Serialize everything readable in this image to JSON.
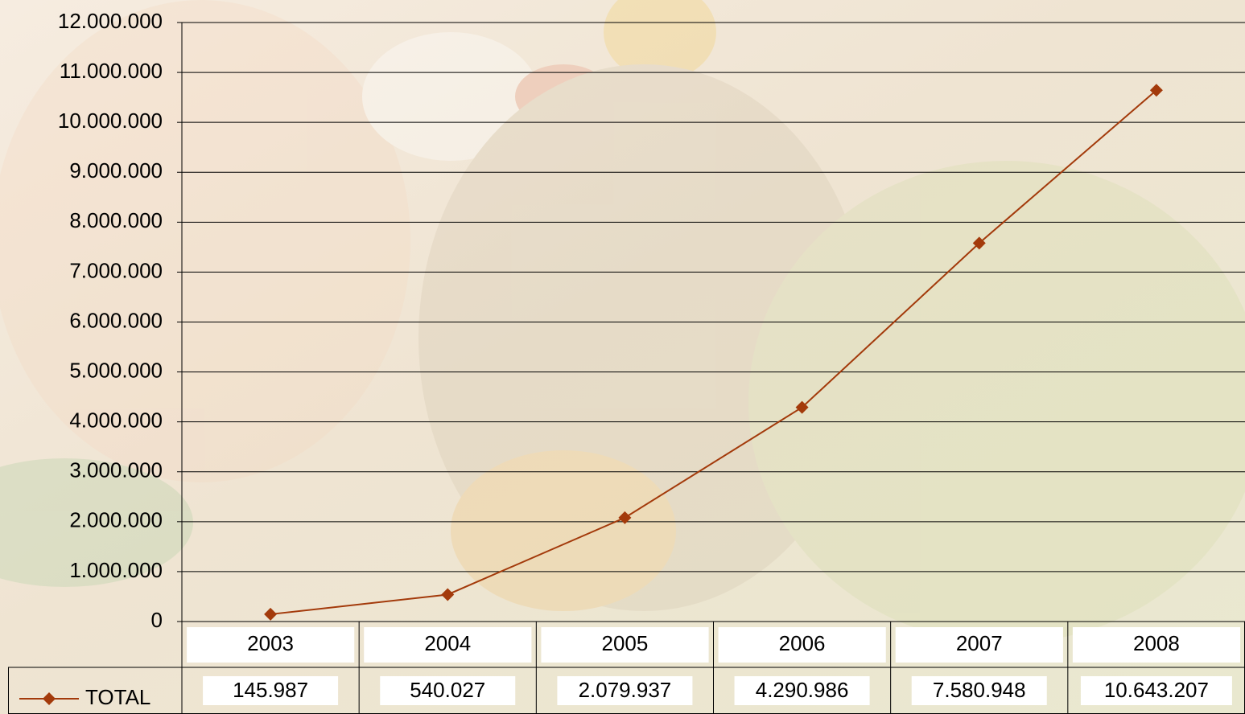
{
  "chart_data": {
    "type": "line",
    "categories": [
      "2003",
      "2004",
      "2005",
      "2006",
      "2007",
      "2008"
    ],
    "series": [
      {
        "name": "TOTAL",
        "color": "#a33a0b",
        "values": [
          145987,
          540027,
          2079937,
          4290986,
          7580948,
          10643207
        ],
        "value_labels": [
          "145.987",
          "540.027",
          "2.079.937",
          "4.290.986",
          "7.580.948",
          "10.643.207"
        ]
      }
    ],
    "ylim": [
      0,
      12000000
    ],
    "yticks": [
      0,
      {
        "value": 1000000,
        "label": "1.000.000"
      },
      {
        "value": 2000000,
        "label": "2.000.000"
      },
      {
        "value": 3000000,
        "label": "3.000.000"
      },
      {
        "value": 4000000,
        "label": "4.000.000"
      },
      {
        "value": 5000000,
        "label": "5.000.000"
      },
      {
        "value": 6000000,
        "label": "6.000.000"
      },
      {
        "value": 7000000,
        "label": "7.000.000"
      },
      {
        "value": 8000000,
        "label": "8.000.000"
      },
      {
        "value": 9000000,
        "label": "9.000.000"
      },
      {
        "value": 10000000,
        "label": "10.000.000"
      },
      {
        "value": 11000000,
        "label": "11.000.000"
      },
      {
        "value": 12000000,
        "label": "12.000.000"
      }
    ],
    "grid": true,
    "data_table": true
  }
}
